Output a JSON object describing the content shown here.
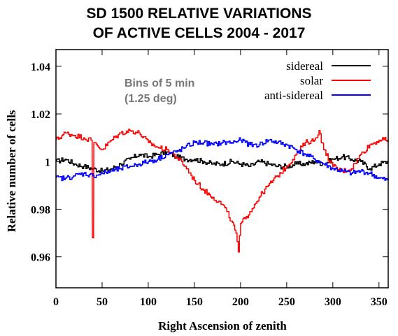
{
  "chart_data": {
    "type": "line",
    "title_line1": "SD 1500  RELATIVE VARIATIONS",
    "title_line2": "OF ACTIVE CELLS   2004 - 2017",
    "xlabel": "Right Ascension of zenith",
    "ylabel": "Relative number of cells",
    "xlim": [
      0,
      360
    ],
    "ylim": [
      0.947,
      1.047
    ],
    "xticks": [
      0,
      50,
      100,
      150,
      200,
      250,
      300,
      350
    ],
    "xtick_labels": [
      "0",
      "50",
      "100",
      "150",
      "200",
      "250",
      "300",
      "350"
    ],
    "yticks": [
      0.96,
      0.98,
      1.0,
      1.02,
      1.04
    ],
    "ytick_labels": [
      "0.96",
      "0.98",
      "1",
      "1.02",
      "1.04"
    ],
    "annotation_line1": "Bins of 5 min",
    "annotation_line2": "(1.25 deg)",
    "legend_position": "top-right",
    "grid": false,
    "series": [
      {
        "name": "sidereal",
        "color": "#000000",
        "x": [
          0,
          10,
          20,
          30,
          40,
          50,
          60,
          70,
          80,
          90,
          100,
          110,
          120,
          130,
          140,
          150,
          160,
          170,
          180,
          190,
          200,
          210,
          220,
          230,
          240,
          250,
          260,
          270,
          280,
          290,
          300,
          310,
          320,
          330,
          340,
          350,
          360
        ],
        "y": [
          1.0,
          1.001,
          0.999,
          0.998,
          0.997,
          0.996,
          0.997,
          0.999,
          1.001,
          1.003,
          1.002,
          1.003,
          1.004,
          1.002,
          1.001,
          1.001,
          1.0,
          0.999,
          0.999,
          1.0,
          0.999,
          0.998,
          1.0,
          0.999,
          0.998,
          0.998,
          0.999,
          0.999,
          1.0,
          0.999,
          1.001,
          1.002,
          1.001,
          1.0,
          0.997,
          0.999,
          1.0
        ]
      },
      {
        "name": "solar",
        "color": "#ff0000",
        "x": [
          0,
          10,
          20,
          30,
          38,
          39.5,
          41,
          50,
          60,
          70,
          80,
          90,
          100,
          110,
          120,
          130,
          140,
          150,
          160,
          170,
          180,
          185,
          190,
          195,
          197.5,
          200,
          205,
          210,
          220,
          230,
          240,
          250,
          260,
          270,
          280,
          285,
          290,
          300,
          310,
          320,
          330,
          340,
          350,
          360
        ],
        "y": [
          1.009,
          1.012,
          1.011,
          1.01,
          1.009,
          0.968,
          1.008,
          1.005,
          1.009,
          1.012,
          1.013,
          1.012,
          1.008,
          1.006,
          1.005,
          1.002,
          0.998,
          0.992,
          0.988,
          0.985,
          0.982,
          0.979,
          0.975,
          0.97,
          0.962,
          0.974,
          0.976,
          0.979,
          0.985,
          0.99,
          0.994,
          0.998,
          1.003,
          1.008,
          1.009,
          1.013,
          1.005,
          0.998,
          0.996,
          0.997,
          1.003,
          1.007,
          1.009,
          1.009
        ]
      },
      {
        "name": "anti-sidereal",
        "color": "#0000ff",
        "x": [
          0,
          10,
          20,
          30,
          40,
          50,
          60,
          70,
          80,
          90,
          100,
          110,
          120,
          130,
          140,
          150,
          160,
          170,
          180,
          190,
          200,
          210,
          220,
          230,
          240,
          250,
          260,
          270,
          280,
          290,
          300,
          310,
          320,
          330,
          340,
          350,
          360
        ],
        "y": [
          0.993,
          0.993,
          0.994,
          0.995,
          0.994,
          0.995,
          0.996,
          0.997,
          0.998,
          0.999,
          1.0,
          1.001,
          1.003,
          1.004,
          1.006,
          1.008,
          1.008,
          1.007,
          1.008,
          1.008,
          1.009,
          1.007,
          1.007,
          1.009,
          1.008,
          1.007,
          1.005,
          1.003,
          1.001,
          0.999,
          0.997,
          0.996,
          0.995,
          0.996,
          0.995,
          0.993,
          0.992
        ]
      }
    ]
  }
}
